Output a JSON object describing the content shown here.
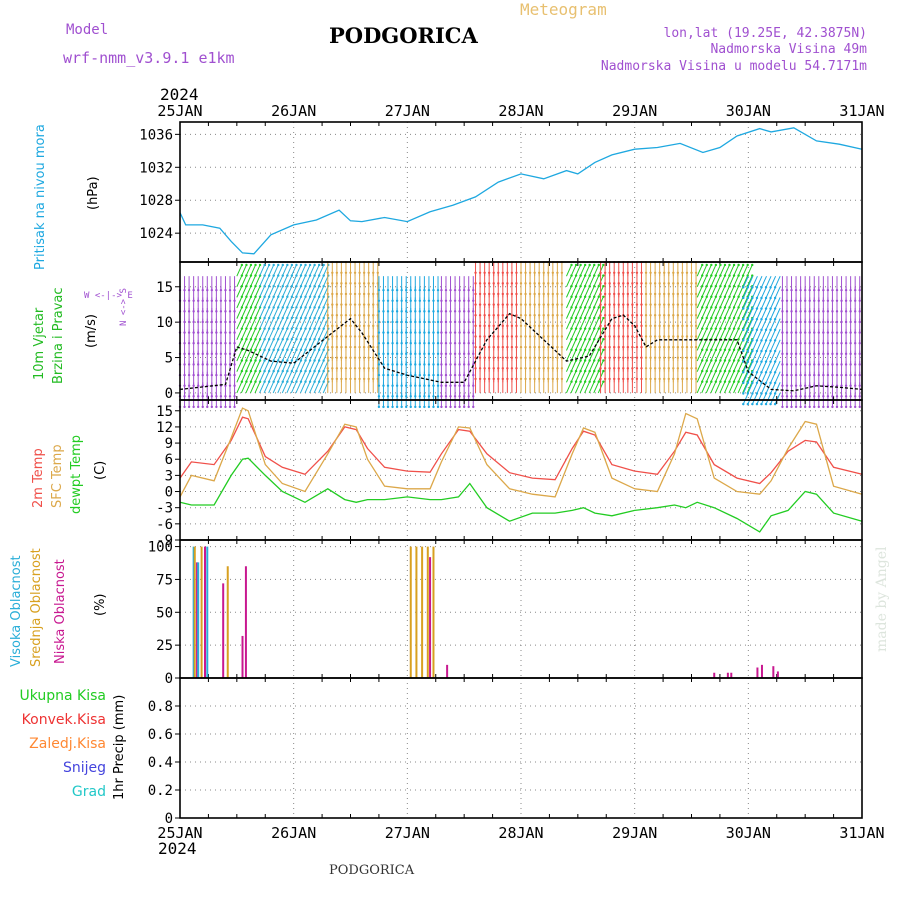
{
  "header": {
    "model_label": "Model",
    "model_name": "wrf-nmm_v3.9.1 e1km",
    "station": "PODGORICA",
    "chart_kind": "Meteogram",
    "lonlat": "lon,lat (19.25E, 42.3875N)",
    "elevation": "Nadmorska Visina 49m",
    "model_elevation": "Nadmorska Visina u modelu 54.7171m",
    "footer_station": "PODGORICA",
    "credit": "made by Angel"
  },
  "colors": {
    "pressure": "#1ea8e0",
    "temp2m": "#f0504a",
    "sfc_temp": "#dca84a",
    "dewpoint": "#22cc22",
    "cloud_high": "#2aaed8",
    "cloud_mid": "#d8a020",
    "cloud_low": "#c81890",
    "purple": "#a050d0",
    "wind_label": "#22bb22",
    "precip_total": "#22cc22",
    "precip_conv": "#ee3333",
    "precip_frz": "#ff8833",
    "precip_snow": "#4444dd",
    "precip_hail": "#22c8c8"
  },
  "chart_data": {
    "type": "line",
    "time_axis": {
      "year": "2024",
      "ticks": [
        "25JAN",
        "26JAN",
        "27JAN",
        "28JAN",
        "29JAN",
        "30JAN",
        "31JAN"
      ],
      "range_days": [
        0,
        6
      ]
    },
    "panels": [
      {
        "id": "pressure",
        "ylabel": "Pritisak na nivou mora",
        "unit": "(hPa)",
        "ylim": [
          1020.5,
          1037.5
        ],
        "yticks": [
          1024,
          1028,
          1032,
          1036
        ],
        "series": [
          {
            "name": "Pritisak na nivou mora",
            "color_key": "pressure",
            "x": [
              0,
              0.05,
              0.2,
              0.35,
              0.45,
              0.55,
              0.65,
              0.8,
              1.0,
              1.2,
              1.4,
              1.5,
              1.6,
              1.8,
              2.0,
              2.2,
              2.4,
              2.6,
              2.8,
              3.0,
              3.2,
              3.4,
              3.5,
              3.65,
              3.8,
              4.0,
              4.2,
              4.4,
              4.6,
              4.75,
              4.9,
              5.1,
              5.2,
              5.4,
              5.6,
              5.8,
              6.0
            ],
            "y": [
              1026.5,
              1025.0,
              1025.0,
              1024.6,
              1023.0,
              1021.6,
              1021.5,
              1023.8,
              1025.0,
              1025.6,
              1026.8,
              1025.5,
              1025.4,
              1025.9,
              1025.4,
              1026.6,
              1027.4,
              1028.4,
              1030.2,
              1031.2,
              1030.6,
              1031.6,
              1031.2,
              1032.6,
              1033.5,
              1034.2,
              1034.4,
              1034.9,
              1033.8,
              1034.4,
              1035.8,
              1036.7,
              1036.3,
              1036.8,
              1035.2,
              1034.8,
              1034.2
            ]
          }
        ]
      },
      {
        "id": "wind",
        "ylabel_line1": "10m Vjetar",
        "ylabel_line2": "Brzina i Pravac",
        "unit": "(m/s)",
        "ylim": [
          -1,
          18.5
        ],
        "yticks": [
          0,
          5,
          10,
          15
        ],
        "compass": "W <-|-> E",
        "compass_v": "N <-> S",
        "series": [
          {
            "name": "wind speed",
            "color_key": "black",
            "x": [
              0,
              0.4,
              0.5,
              0.6,
              0.8,
              1.0,
              1.3,
              1.5,
              1.6,
              1.8,
              2.0,
              2.3,
              2.5,
              2.7,
              2.9,
              3.0,
              3.2,
              3.4,
              3.6,
              3.8,
              3.9,
              4.0,
              4.1,
              4.2,
              4.3,
              4.5,
              4.7,
              4.9,
              5.0,
              5.2,
              5.4,
              5.6,
              5.8,
              6.0
            ],
            "y": [
              0.5,
              1.2,
              6.5,
              6.0,
              4.5,
              4.2,
              8.0,
              10.5,
              8.5,
              3.5,
              2.5,
              1.5,
              1.5,
              7.5,
              11.2,
              10.5,
              7.5,
              4.5,
              5.2,
              10.5,
              11.0,
              9.5,
              6.5,
              7.5,
              7.5,
              7.5,
              7.5,
              7.5,
              3.0,
              0.5,
              0.3,
              1.0,
              0.8,
              0.5
            ]
          }
        ],
        "wind_dir_segments": [
          {
            "from": 0.0,
            "to": 0.5,
            "dir": "S",
            "color_key": "purple"
          },
          {
            "from": 0.5,
            "to": 0.7,
            "dir": "NE",
            "color_key": "dewpoint"
          },
          {
            "from": 0.7,
            "to": 1.3,
            "dir": "NE",
            "color_key": "cloud_high"
          },
          {
            "from": 1.3,
            "to": 1.75,
            "dir": "N",
            "color_key": "sfc_temp"
          },
          {
            "from": 1.75,
            "to": 2.3,
            "dir": "S",
            "color_key": "pressure"
          },
          {
            "from": 2.3,
            "to": 2.6,
            "dir": "S",
            "color_key": "purple"
          },
          {
            "from": 2.6,
            "to": 3.0,
            "dir": "N",
            "color_key": "temp2m"
          },
          {
            "from": 3.0,
            "to": 3.4,
            "dir": "N",
            "color_key": "sfc_temp"
          },
          {
            "from": 3.4,
            "to": 3.7,
            "dir": "NE",
            "color_key": "dewpoint"
          },
          {
            "from": 3.7,
            "to": 4.1,
            "dir": "N",
            "color_key": "temp2m"
          },
          {
            "from": 4.1,
            "to": 4.55,
            "dir": "N",
            "color_key": "sfc_temp"
          },
          {
            "from": 4.55,
            "to": 5.0,
            "dir": "NE",
            "color_key": "dewpoint"
          },
          {
            "from": 5.0,
            "to": 5.3,
            "dir": "SW",
            "color_key": "pressure"
          },
          {
            "from": 5.3,
            "to": 6.0,
            "dir": "S",
            "color_key": "purple"
          }
        ]
      },
      {
        "id": "temperature",
        "ylabel_line1": "2m Temp",
        "ylabel_line2": "SFC Temp",
        "ylabel_line3": "dewpt Temp",
        "unit": "(C)",
        "ylim": [
          -9,
          17
        ],
        "yticks": [
          -9,
          -6,
          -3,
          0,
          3,
          6,
          9,
          12,
          15
        ],
        "series": [
          {
            "name": "2m Temp",
            "color_key": "temp2m",
            "x": [
              0,
              0.1,
              0.3,
              0.45,
              0.55,
              0.6,
              0.75,
              0.9,
              1.1,
              1.3,
              1.45,
              1.55,
              1.65,
              1.8,
              2.0,
              2.2,
              2.3,
              2.45,
              2.55,
              2.7,
              2.9,
              3.1,
              3.3,
              3.45,
              3.55,
              3.65,
              3.8,
              4.0,
              4.2,
              4.35,
              4.45,
              4.55,
              4.7,
              4.9,
              5.1,
              5.2,
              5.35,
              5.5,
              5.6,
              5.75,
              6.0
            ],
            "y": [
              2.5,
              5.5,
              5.0,
              9.5,
              13.8,
              13.5,
              6.5,
              4.5,
              3.2,
              7.5,
              12.0,
              11.5,
              8.0,
              4.5,
              3.8,
              3.6,
              7.0,
              11.5,
              11.2,
              7.0,
              3.5,
              2.5,
              2.2,
              8.0,
              11.2,
              10.5,
              5.0,
              3.8,
              3.2,
              7.5,
              11.0,
              10.5,
              5.0,
              2.5,
              1.5,
              3.5,
              7.5,
              9.5,
              9.2,
              4.5,
              3.2
            ]
          },
          {
            "name": "SFC Temp",
            "color_key": "sfc_temp",
            "x": [
              0,
              0.1,
              0.3,
              0.45,
              0.55,
              0.6,
              0.75,
              0.9,
              1.1,
              1.3,
              1.45,
              1.55,
              1.65,
              1.8,
              2.0,
              2.2,
              2.3,
              2.45,
              2.55,
              2.7,
              2.9,
              3.1,
              3.3,
              3.45,
              3.55,
              3.65,
              3.8,
              4.0,
              4.2,
              4.35,
              4.45,
              4.55,
              4.7,
              4.9,
              5.1,
              5.2,
              5.35,
              5.5,
              5.6,
              5.75,
              6.0
            ],
            "y": [
              -1.0,
              3.0,
              2.0,
              10.0,
              15.5,
              15.0,
              5.0,
              1.5,
              0.0,
              7.0,
              12.5,
              12.0,
              6.0,
              1.0,
              0.5,
              0.5,
              5.5,
              12.0,
              11.8,
              5.0,
              0.5,
              -0.5,
              -1.0,
              7.0,
              11.8,
              11.0,
              2.5,
              0.5,
              0.0,
              7.0,
              14.5,
              13.5,
              2.5,
              0.0,
              -0.5,
              2.0,
              8.0,
              13.0,
              12.5,
              1.0,
              -0.5
            ]
          },
          {
            "name": "dewpt Temp",
            "color_key": "dewpoint",
            "x": [
              0,
              0.1,
              0.3,
              0.45,
              0.55,
              0.6,
              0.75,
              0.9,
              1.1,
              1.3,
              1.45,
              1.55,
              1.65,
              1.8,
              2.0,
              2.2,
              2.3,
              2.45,
              2.55,
              2.7,
              2.9,
              3.1,
              3.3,
              3.45,
              3.55,
              3.65,
              3.8,
              4.0,
              4.2,
              4.35,
              4.45,
              4.55,
              4.7,
              4.9,
              5.1,
              5.2,
              5.35,
              5.5,
              5.6,
              5.75,
              6.0
            ],
            "y": [
              -2.0,
              -2.5,
              -2.5,
              3.0,
              6.0,
              6.2,
              3.0,
              0.0,
              -2.0,
              0.5,
              -1.5,
              -2.0,
              -1.5,
              -1.5,
              -1.0,
              -1.5,
              -1.5,
              -1.0,
              1.5,
              -3.0,
              -5.5,
              -4.0,
              -4.0,
              -3.5,
              -3.0,
              -4.0,
              -4.5,
              -3.5,
              -3.0,
              -2.5,
              -3.0,
              -2.0,
              -3.0,
              -5.0,
              -7.5,
              -4.5,
              -3.5,
              0.0,
              -0.5,
              -4.0,
              -5.5
            ]
          }
        ]
      },
      {
        "id": "clouds",
        "ylabel_line1": "Visoka Oblacnost",
        "ylabel_line2": "Srednja Oblacnost",
        "ylabel_line3": "Niska Oblacnost",
        "unit": "(%)",
        "ylim": [
          0,
          105
        ],
        "yticks": [
          0,
          25,
          50,
          75,
          100
        ],
        "bars": [
          {
            "series": "cloud_high",
            "x": 0.12,
            "value": 100
          },
          {
            "series": "cloud_mid",
            "x": 0.13,
            "value": 100
          },
          {
            "series": "cloud_low",
            "x": 0.15,
            "value": 88
          },
          {
            "series": "cloud_high",
            "x": 0.16,
            "value": 88
          },
          {
            "series": "cloud_mid",
            "x": 0.19,
            "value": 100
          },
          {
            "series": "cloud_low",
            "x": 0.22,
            "value": 100
          },
          {
            "series": "cloud_high",
            "x": 0.24,
            "value": 100
          },
          {
            "series": "cloud_low",
            "x": 0.38,
            "value": 72
          },
          {
            "series": "cloud_mid",
            "x": 0.42,
            "value": 85
          },
          {
            "series": "cloud_low",
            "x": 0.55,
            "value": 32
          },
          {
            "series": "cloud_low",
            "x": 0.58,
            "value": 85
          },
          {
            "series": "cloud_mid",
            "x": 2.03,
            "value": 100
          },
          {
            "series": "cloud_mid",
            "x": 2.08,
            "value": 100
          },
          {
            "series": "cloud_mid",
            "x": 2.13,
            "value": 100
          },
          {
            "series": "cloud_mid",
            "x": 2.18,
            "value": 100
          },
          {
            "series": "cloud_low",
            "x": 2.2,
            "value": 92
          },
          {
            "series": "cloud_mid",
            "x": 2.23,
            "value": 100
          },
          {
            "series": "cloud_low",
            "x": 2.35,
            "value": 10
          },
          {
            "series": "cloud_low",
            "x": 4.7,
            "value": 4
          },
          {
            "series": "cloud_low",
            "x": 4.82,
            "value": 4
          },
          {
            "series": "cloud_low",
            "x": 4.85,
            "value": 4
          },
          {
            "series": "cloud_low",
            "x": 5.08,
            "value": 8
          },
          {
            "series": "cloud_low",
            "x": 5.12,
            "value": 10
          },
          {
            "series": "cloud_low",
            "x": 5.22,
            "value": 9
          },
          {
            "series": "cloud_low",
            "x": 5.26,
            "value": 5
          }
        ]
      },
      {
        "id": "precip",
        "ylabel": "1hr Precip (mm)",
        "ylim": [
          0,
          1.0
        ],
        "yticks": [
          0,
          0.2,
          0.4,
          0.6,
          0.8
        ],
        "legend": [
          "Ukupna Kisa",
          "Konvek.Kisa",
          "Zaledj.Kisa",
          "Snijeg",
          "Grad"
        ],
        "values": []
      }
    ]
  }
}
